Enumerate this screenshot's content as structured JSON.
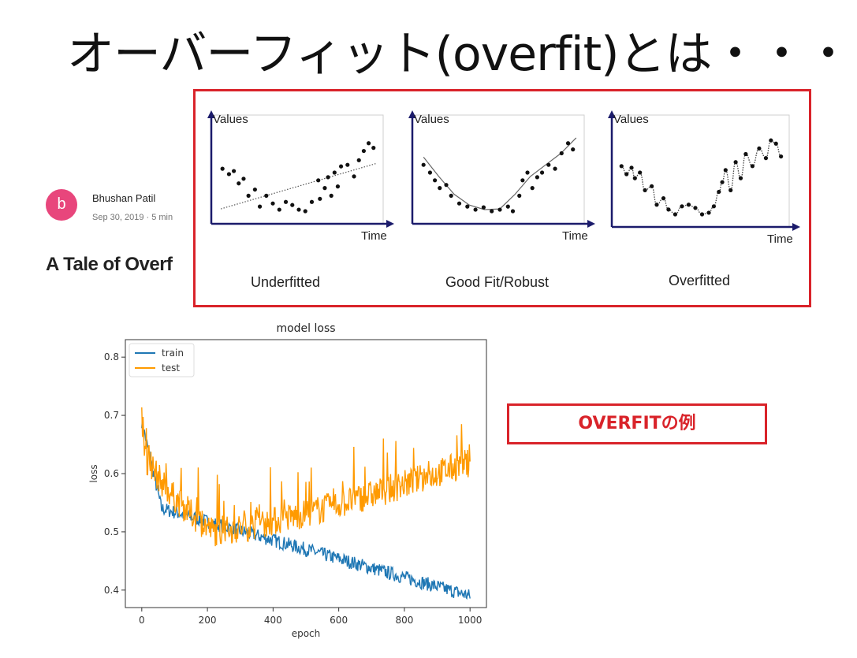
{
  "slide": {
    "title": "オーバーフィット(overfit)とは・・・",
    "example_label": "OVERFITの例"
  },
  "article": {
    "avatar_letter": "b",
    "author": "Bhushan Patil",
    "meta": "Sep 30, 2019 · 5 min",
    "title": "A Tale of Overf"
  },
  "chart_data": [
    {
      "type": "scatter",
      "title": "Underfitted",
      "ylabel": "Values",
      "xlabel": "Time",
      "fit": "linear",
      "x": [
        0.03,
        0.07,
        0.1,
        0.13,
        0.16,
        0.19,
        0.23,
        0.26,
        0.3,
        0.34,
        0.38,
        0.42,
        0.46,
        0.5,
        0.54,
        0.58,
        0.62,
        0.63,
        0.66,
        0.68,
        0.7,
        0.72,
        0.74,
        0.76,
        0.8,
        0.84,
        0.87,
        0.9,
        0.93,
        0.96
      ],
      "y": [
        0.55,
        0.48,
        0.52,
        0.36,
        0.42,
        0.2,
        0.28,
        0.06,
        0.2,
        0.1,
        0.02,
        0.12,
        0.08,
        0.02,
        0.0,
        0.12,
        0.4,
        0.16,
        0.3,
        0.44,
        0.2,
        0.5,
        0.32,
        0.58,
        0.6,
        0.45,
        0.66,
        0.78,
        0.88,
        0.82
      ],
      "fit_y": [
        0.03,
        0.62
      ]
    },
    {
      "type": "scatter",
      "title": "Good Fit/Robust",
      "ylabel": "Values",
      "xlabel": "Time",
      "fit": "curve",
      "x": [
        0.03,
        0.07,
        0.1,
        0.13,
        0.17,
        0.2,
        0.25,
        0.3,
        0.35,
        0.4,
        0.45,
        0.5,
        0.55,
        0.58,
        0.62,
        0.64,
        0.67,
        0.7,
        0.73,
        0.76,
        0.8,
        0.84,
        0.88,
        0.92,
        0.95
      ],
      "y": [
        0.6,
        0.5,
        0.4,
        0.3,
        0.34,
        0.2,
        0.1,
        0.06,
        0.02,
        0.05,
        0.0,
        0.02,
        0.06,
        0.0,
        0.2,
        0.4,
        0.5,
        0.3,
        0.44,
        0.5,
        0.6,
        0.55,
        0.75,
        0.88,
        0.8
      ],
      "curve_y": [
        0.7,
        0.45,
        0.22,
        0.08,
        0.02,
        0.03,
        0.22,
        0.45,
        0.6,
        0.75,
        0.95
      ]
    },
    {
      "type": "scatter",
      "title": "Overfitted",
      "ylabel": "Values",
      "xlabel": "Time",
      "fit": "interpolate",
      "x": [
        0.02,
        0.05,
        0.08,
        0.1,
        0.13,
        0.16,
        0.2,
        0.23,
        0.27,
        0.3,
        0.34,
        0.38,
        0.42,
        0.46,
        0.5,
        0.54,
        0.57,
        0.6,
        0.62,
        0.64,
        0.67,
        0.7,
        0.73,
        0.76,
        0.8,
        0.84,
        0.88,
        0.91,
        0.94,
        0.97
      ],
      "y": [
        0.6,
        0.5,
        0.58,
        0.45,
        0.52,
        0.3,
        0.35,
        0.12,
        0.2,
        0.06,
        0.0,
        0.1,
        0.12,
        0.08,
        0.0,
        0.02,
        0.1,
        0.28,
        0.4,
        0.55,
        0.3,
        0.65,
        0.45,
        0.75,
        0.6,
        0.82,
        0.7,
        0.92,
        0.88,
        0.72
      ]
    },
    {
      "type": "line",
      "title": "model loss",
      "xlabel": "epoch",
      "ylabel": "loss",
      "xlim": [
        -50,
        1050
      ],
      "ylim": [
        0.37,
        0.83
      ],
      "xticks": [
        0,
        200,
        400,
        600,
        800,
        1000
      ],
      "yticks": [
        0.4,
        0.5,
        0.6,
        0.7,
        0.8
      ],
      "legend": "top-left",
      "series": [
        {
          "name": "train",
          "color": "#1f77b4",
          "start": 0.69,
          "end": 0.39,
          "noise": 0.012
        },
        {
          "name": "test",
          "color": "#ff9a00",
          "start": 0.68,
          "min": 0.5,
          "min_at": 220,
          "end": 0.62,
          "noise": 0.025
        }
      ]
    }
  ]
}
